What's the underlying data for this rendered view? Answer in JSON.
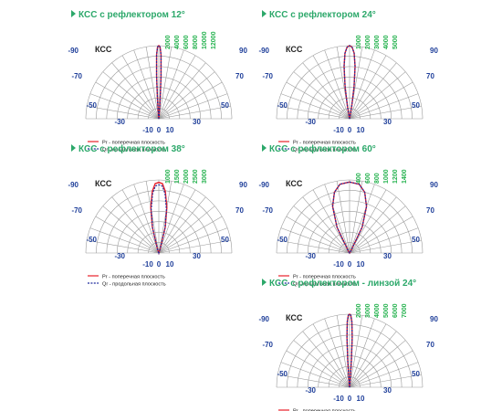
{
  "colors": {
    "title": "#2ca86a",
    "angle_labels": "#1f3f9a",
    "ring_labels": "#22b14c",
    "pr_line": "#e8202a",
    "qr_line": "#1f2a9e",
    "grid": "#9a9a9a"
  },
  "legend": {
    "pr": "Pr - поперечная плоскость",
    "qr": "Qr - продольная плоскость"
  },
  "chart_data": [
    {
      "type": "polar",
      "title": "КСС с рефлектором 12°",
      "inner_label": "КСС",
      "angle_ticks": [
        "-90",
        "-70",
        "-50",
        "-30",
        "-10",
        "0",
        "10",
        "30",
        "50",
        "70",
        "90"
      ],
      "r_ticks": [
        "2000",
        "4000",
        "6000",
        "8000",
        "10000",
        "12000"
      ],
      "r_max": 12000,
      "series": [
        {
          "name": "Pr - поперечная плоскость",
          "angles": [
            -6,
            -4,
            -3,
            -2,
            -1,
            0,
            1,
            2,
            3,
            4,
            6
          ],
          "values": [
            500,
            3000,
            7000,
            10500,
            11800,
            12000,
            11800,
            10500,
            7000,
            3000,
            500
          ]
        },
        {
          "name": "Qr - продольная плоскость",
          "angles": [
            -6,
            -4,
            -3,
            -2,
            -1,
            0,
            1,
            2,
            3,
            4,
            6
          ],
          "values": [
            500,
            3000,
            7000,
            10500,
            11800,
            12000,
            11800,
            10500,
            7000,
            3000,
            500
          ]
        }
      ]
    },
    {
      "type": "polar",
      "title": "КСС с рефлектором 24°",
      "inner_label": "КСС",
      "angle_ticks": [
        "-90",
        "-70",
        "-50",
        "-30",
        "-10",
        "0",
        "10",
        "30",
        "50",
        "70",
        "90"
      ],
      "r_ticks": [
        "1000",
        "2000",
        "3000",
        "4000",
        "5000"
      ],
      "r_max": 5000,
      "series": [
        {
          "name": "Pr - поперечная плоскость",
          "angles": [
            -10,
            -8,
            -6,
            -4,
            -2,
            0,
            2,
            4,
            6,
            8,
            10
          ],
          "values": [
            800,
            2200,
            3600,
            4500,
            4900,
            5000,
            4900,
            4500,
            3600,
            2200,
            800
          ]
        },
        {
          "name": "Qr - продольная плоскость",
          "angles": [
            -10,
            -8,
            -6,
            -4,
            -2,
            0,
            2,
            4,
            6,
            8,
            10
          ],
          "values": [
            800,
            2200,
            3600,
            4500,
            4900,
            5000,
            4900,
            4500,
            3600,
            2200,
            800
          ]
        }
      ]
    },
    {
      "type": "polar",
      "title": "КСС с рефлектором 38°",
      "inner_label": "КСС",
      "angle_ticks": [
        "-90",
        "-70",
        "-50",
        "-30",
        "-10",
        "0",
        "10",
        "30",
        "50",
        "70",
        "90"
      ],
      "r_ticks": [
        "1000",
        "1500",
        "2000",
        "2500",
        "3000"
      ],
      "r_max": 3000,
      "series": [
        {
          "name": "Pr - поперечная плоскость",
          "angles": [
            -18,
            -14,
            -10,
            -6,
            -3,
            0,
            3,
            6,
            10,
            14,
            18
          ],
          "values": [
            200,
            1100,
            1900,
            2550,
            2850,
            2900,
            2850,
            2550,
            1900,
            1100,
            200
          ]
        },
        {
          "name": "Qr - продольная плоскость",
          "angles": [
            -18,
            -14,
            -10,
            -6,
            -3,
            0,
            3,
            6,
            10,
            14,
            18
          ],
          "values": [
            200,
            1050,
            1800,
            2450,
            2750,
            2800,
            2750,
            2450,
            1800,
            1050,
            200
          ]
        }
      ]
    },
    {
      "type": "polar",
      "title": "КСС с рефлектором 60°",
      "inner_label": "КСС",
      "angle_ticks": [
        "-90",
        "-70",
        "-50",
        "-30",
        "-10",
        "0",
        "10",
        "30",
        "50",
        "70",
        "90"
      ],
      "r_ticks": [
        "400",
        "600",
        "800",
        "1000",
        "1200",
        "1400"
      ],
      "r_max": 1400,
      "series": [
        {
          "name": "Pr - поперечная плоскость",
          "angles": [
            -32,
            -26,
            -20,
            -14,
            -8,
            0,
            8,
            14,
            20,
            26,
            32
          ],
          "values": [
            50,
            550,
            950,
            1200,
            1330,
            1360,
            1330,
            1200,
            950,
            550,
            50
          ]
        },
        {
          "name": "Qr - продольная плоскость",
          "angles": [
            -32,
            -26,
            -20,
            -14,
            -8,
            0,
            8,
            14,
            20,
            26,
            32
          ],
          "values": [
            50,
            550,
            950,
            1200,
            1330,
            1360,
            1330,
            1200,
            950,
            550,
            50
          ]
        }
      ]
    },
    {
      "type": "polar",
      "title": "КСС с рефлектором - линзой 24°",
      "inner_label": "КСС",
      "angle_ticks": [
        "-90",
        "-70",
        "-50",
        "-30",
        "-10",
        "0",
        "10",
        "30",
        "50",
        "70",
        "90"
      ],
      "r_ticks": [
        "2000",
        "3000",
        "4000",
        "5000",
        "6000",
        "7000"
      ],
      "r_max": 7000,
      "series": [
        {
          "name": "Pr - поперечная плоскость",
          "angles": [
            -6,
            -4,
            -3,
            -2,
            -1,
            0,
            1,
            2,
            3,
            4,
            6
          ],
          "values": [
            400,
            2500,
            4800,
            6300,
            6900,
            7000,
            6900,
            6300,
            4800,
            2500,
            400
          ]
        },
        {
          "name": "Qr - продольная плоскость",
          "angles": [
            -6,
            -4,
            -3,
            -2,
            -1,
            0,
            1,
            2,
            3,
            4,
            6
          ],
          "values": [
            400,
            2500,
            4800,
            6300,
            6900,
            7000,
            6900,
            6300,
            4800,
            2500,
            400
          ]
        }
      ]
    }
  ]
}
